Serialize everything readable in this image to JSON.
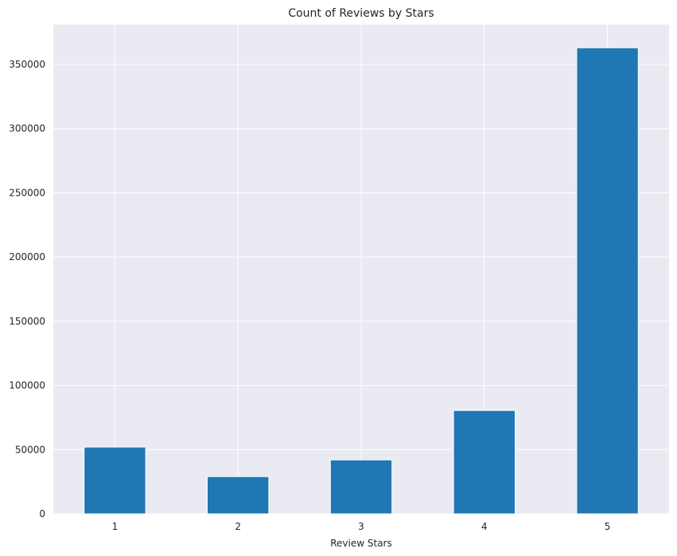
{
  "chart_data": {
    "type": "bar",
    "title": "Count of Reviews by Stars",
    "xlabel": "Review Stars",
    "ylabel": "",
    "categories": [
      "1",
      "2",
      "3",
      "4",
      "5"
    ],
    "values": [
      52000,
      29000,
      42000,
      80500,
      363000
    ],
    "ylim": [
      0,
      381000
    ],
    "yticks": [
      0,
      50000,
      100000,
      150000,
      200000,
      250000,
      300000,
      350000
    ],
    "ytick_labels": [
      "0",
      "50000",
      "100000",
      "150000",
      "200000",
      "250000",
      "300000",
      "350000"
    ],
    "grid": true,
    "colors": {
      "bar": "#1f77b4",
      "background": "#eaeaf2",
      "grid": "#ffffff"
    }
  }
}
